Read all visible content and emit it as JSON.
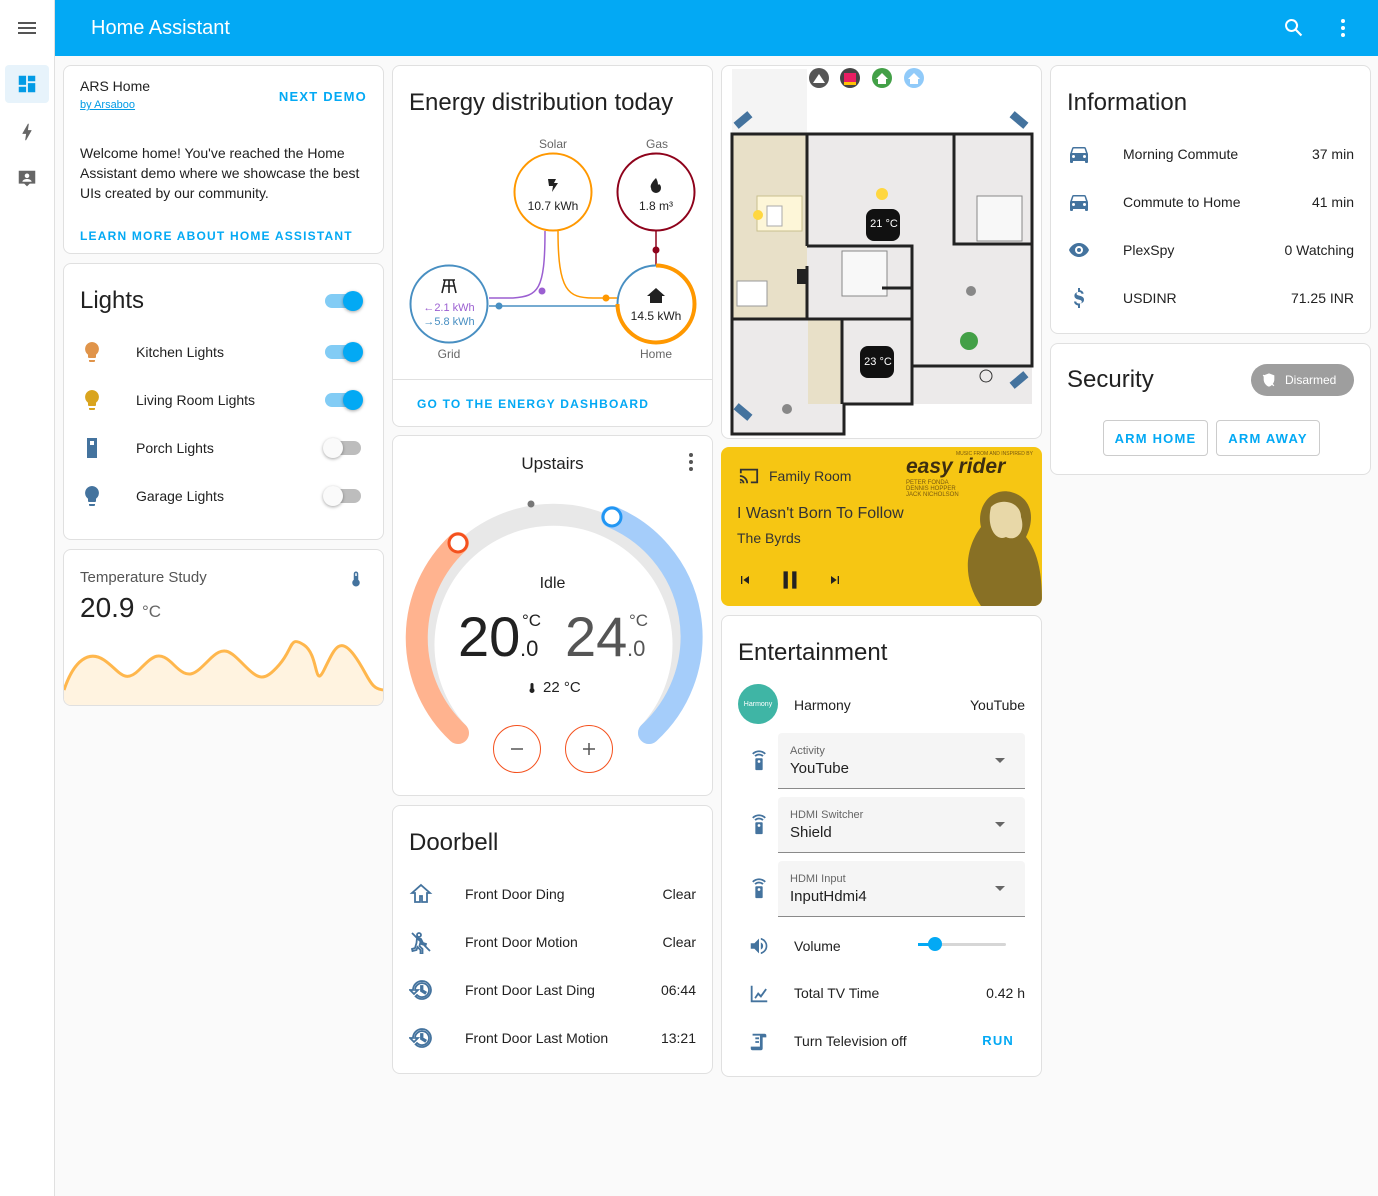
{
  "app": {
    "title": "Home Assistant"
  },
  "demo": {
    "name": "ARS Home",
    "author": "by Arsaboo",
    "next": "NEXT DEMO",
    "text": "Welcome home! You've reached the Home Assistant demo where we showcase the best UIs created by our community.",
    "learn": "LEARN MORE ABOUT HOME ASSISTANT"
  },
  "lights": {
    "title": "Lights",
    "items": [
      {
        "name": "Kitchen Lights",
        "on": true,
        "color": "#e0944a"
      },
      {
        "name": "Living Room Lights",
        "on": true,
        "color": "#d9a41e"
      },
      {
        "name": "Porch Lights",
        "on": false,
        "color": "#44739e"
      },
      {
        "name": "Garage Lights",
        "on": false,
        "color": "#44739e"
      }
    ]
  },
  "temperature": {
    "title": "Temperature Study",
    "value": "20.9",
    "unit": "°C"
  },
  "energy": {
    "title": "Energy distribution today",
    "solar_label": "Solar",
    "solar_value": "10.7 kWh",
    "gas_label": "Gas",
    "gas_value": "1.8 m³",
    "grid_label": "Grid",
    "grid_in": "←2.1 kWh",
    "grid_out": "→5.8 kWh",
    "home_label": "Home",
    "home_value": "14.5 kWh",
    "link": "GO TO THE ENERGY DASHBOARD"
  },
  "thermostat": {
    "title": "Upstairs",
    "state": "Idle",
    "low_int": "20",
    "low_dec": ".0",
    "high_int": "24",
    "high_dec": ".0",
    "unit": "°C",
    "current": "22 °C"
  },
  "doorbell": {
    "title": "Doorbell",
    "rows": [
      {
        "name": "Front Door Ding",
        "state": "Clear"
      },
      {
        "name": "Front Door Motion",
        "state": "Clear"
      },
      {
        "name": "Front Door Last Ding",
        "state": "06:44"
      },
      {
        "name": "Front Door Last Motion",
        "state": "13:21"
      }
    ]
  },
  "floorplan": {
    "temp1": "21 °C",
    "temp2": "23 °C"
  },
  "media": {
    "source": "Family Room",
    "track": "I Wasn't Born To Follow",
    "artist": "The Byrds",
    "art_title": "easy rider",
    "art_small": "MUSIC FROM AND INSPIRED BY",
    "art_cast": [
      "PETER FONDA",
      "DENNIS HOPPER",
      "JACK NICHOLSON"
    ],
    "bg": "#f6c613"
  },
  "entertainment": {
    "title": "Entertainment",
    "harmony_avatar": "Harmony",
    "harmony_name": "Harmony",
    "harmony_state": "YouTube",
    "selects": [
      {
        "label": "Activity",
        "value": "YouTube"
      },
      {
        "label": "HDMI Switcher",
        "value": "Shield"
      },
      {
        "label": "HDMI Input",
        "value": "InputHdmi4"
      }
    ],
    "volume_label": "Volume",
    "volume_level": 0.19,
    "tv_time_label": "Total TV Time",
    "tv_time_value": "0.42 h",
    "tv_off_label": "Turn Television off",
    "run": "RUN"
  },
  "information": {
    "title": "Information",
    "rows": [
      {
        "name": "Morning Commute",
        "value": "37 min"
      },
      {
        "name": "Commute to Home",
        "value": "41 min"
      },
      {
        "name": "PlexSpy",
        "value": "0 Watching"
      },
      {
        "name": "USDINR",
        "value": "71.25 INR"
      }
    ]
  },
  "security": {
    "title": "Security",
    "state": "Disarmed",
    "arm_home": "ARM HOME",
    "arm_away": "ARM AWAY"
  },
  "colors": {
    "accent": "#03a9f4",
    "icon": "#44739e",
    "solar": "#ff9800",
    "gas": "#8e021b",
    "grid": "#488fc2",
    "home": "#03a9f4"
  }
}
